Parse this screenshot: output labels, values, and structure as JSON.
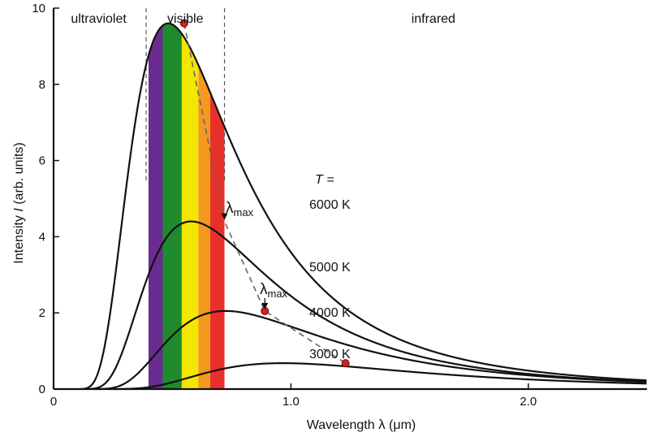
{
  "chart_data": {
    "type": "line",
    "xlabel_prefix": "Wavelength ",
    "xlabel_symbol": "λ",
    "xlabel_unit": " (μm)",
    "ylabel_prefix": "Intensity ",
    "ylabel_symbol": "I",
    "ylabel_unit": " (arb. units)",
    "xlim": [
      0,
      2.5
    ],
    "ylim": [
      0,
      10
    ],
    "x_ticks": [
      0,
      1.0,
      2.0
    ],
    "x_tick_labels": [
      "0",
      "1.0",
      "2.0"
    ],
    "y_ticks": [
      0,
      2,
      4,
      6,
      8,
      10
    ],
    "y_tick_labels": [
      "0",
      "2",
      "4",
      "6",
      "8",
      "10"
    ],
    "regions": [
      {
        "label": "ultraviolet",
        "from": 0,
        "to": 0.39
      },
      {
        "label": "visible",
        "from": 0.39,
        "to": 0.72
      },
      {
        "label": "infrared",
        "from": 0.72,
        "to": 2.5
      }
    ],
    "visible_bands": [
      {
        "from": 0.4,
        "to": 0.46,
        "color": "#6a2c91"
      },
      {
        "from": 0.46,
        "to": 0.54,
        "color": "#1f8a2e"
      },
      {
        "from": 0.54,
        "to": 0.61,
        "color": "#f3e600"
      },
      {
        "from": 0.61,
        "to": 0.66,
        "color": "#f39a1e"
      },
      {
        "from": 0.66,
        "to": 0.72,
        "color": "#e8302a"
      }
    ],
    "temperature_header": "T =",
    "series": [
      {
        "name": "6000 K",
        "temperature_k": 6000,
        "peak_wavelength": 0.55,
        "peak_intensity": 9.6
      },
      {
        "name": "5000 K",
        "temperature_k": 5000,
        "peak_wavelength": 0.72,
        "peak_intensity": 4.4
      },
      {
        "name": "4000 K",
        "temperature_k": 4000,
        "peak_wavelength": 0.89,
        "peak_intensity": 2.05
      },
      {
        "name": "3000 K",
        "temperature_k": 3000,
        "peak_wavelength": 1.23,
        "peak_intensity": 0.68
      }
    ],
    "annotations": [
      {
        "text_main": "λ",
        "text_sub": "max",
        "target_series": "5000 K"
      },
      {
        "text_main": "λ",
        "text_sub": "max",
        "target_series": "4000 K"
      }
    ],
    "peak_marker_color": "#d42020",
    "peak_locus": "dashed line through the curve maxima"
  }
}
